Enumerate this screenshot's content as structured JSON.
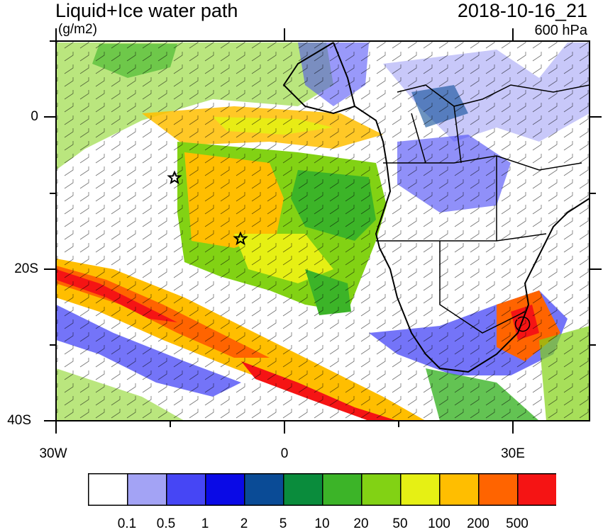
{
  "header": {
    "title": "Liquid+Ice water path",
    "units": "(g/m2)",
    "datetime": "2018-10-16_21",
    "level": "600 hPa"
  },
  "axes": {
    "y_ticks": [
      "0",
      "20S",
      "40S"
    ],
    "x_ticks": [
      "30W",
      "0",
      "30E"
    ]
  },
  "colorbar": {
    "colors": [
      "#ffffff",
      "#a3a3f5",
      "#4646f5",
      "#0a0ae6",
      "#0a4b96",
      "#0a8c3c",
      "#3cb428",
      "#82d214",
      "#e6f014",
      "#ffbe00",
      "#ff6400",
      "#f51414"
    ],
    "labels": [
      "0.1",
      "0.5",
      "1",
      "2",
      "5",
      "10",
      "20",
      "50",
      "100",
      "200",
      "500"
    ]
  },
  "markers": {
    "symbol": "star"
  }
}
